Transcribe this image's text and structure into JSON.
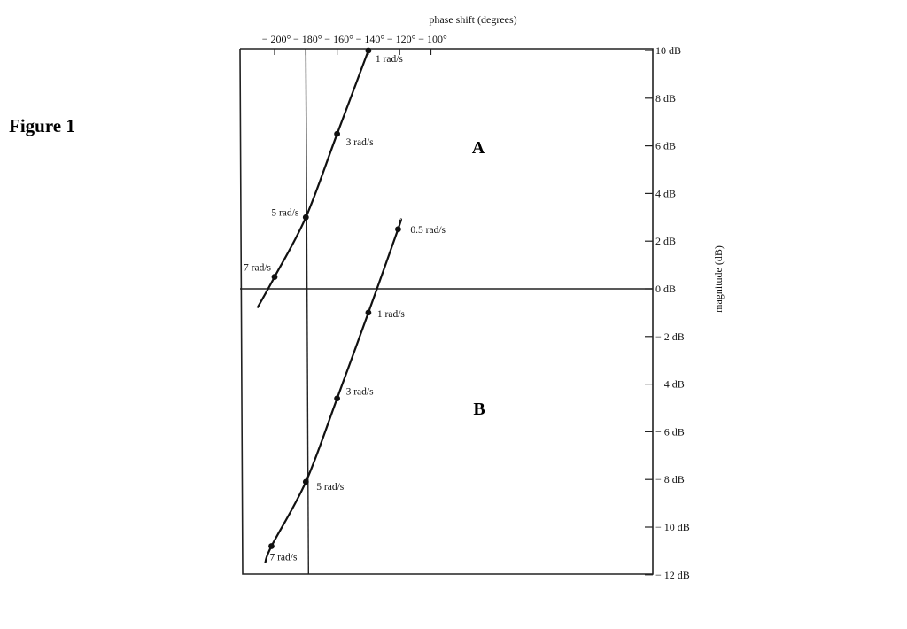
{
  "figure_label": "Figure 1",
  "chart_data": {
    "type": "line",
    "title": "",
    "xlabel": "phase shift (degrees)",
    "ylabel": "magnitude (dB)",
    "xlim": [
      -215,
      -90
    ],
    "ylim": [
      -12.3,
      10.1
    ],
    "x_ticks": [
      -200,
      -180,
      -160,
      -140,
      -120,
      -100
    ],
    "x_tick_labels": [
      "− 200°",
      "− 180°",
      "− 160°",
      "− 140°",
      "− 120°",
      "− 100°"
    ],
    "y_ticks": [
      10,
      8,
      6,
      4,
      2,
      0,
      -2,
      -4,
      -6,
      -8,
      -10,
      -12
    ],
    "y_tick_labels": [
      "10 dB",
      "8 dB",
      "6 dB",
      "4 dB",
      "2 dB",
      "0 dB",
      "− 2 dB",
      "− 4 dB",
      "− 6 dB",
      "− 8 dB",
      "− 10 dB",
      "− 12 dB"
    ],
    "reference_lines": {
      "x": -180,
      "y": 0
    },
    "grid": false,
    "series": [
      {
        "name": "A",
        "curve": [
          [
            -211,
            -0.8
          ],
          [
            -200,
            0.5
          ],
          [
            -180,
            3.0
          ],
          [
            -160,
            6.5
          ],
          [
            -140,
            10.0
          ]
        ],
        "points": [
          {
            "x": -140,
            "y": 10.0,
            "label": "1 rad/s"
          },
          {
            "x": -160,
            "y": 6.5,
            "label": "3 rad/s"
          },
          {
            "x": -180,
            "y": 3.0,
            "label": "5 rad/s"
          },
          {
            "x": -200,
            "y": 0.5,
            "label": "7 rad/s"
          }
        ]
      },
      {
        "name": "B",
        "curve": [
          [
            -206,
            -11.5
          ],
          [
            -202,
            -10.8
          ],
          [
            -180,
            -8.1
          ],
          [
            -160,
            -4.6
          ],
          [
            -140,
            -1.0
          ],
          [
            -121,
            2.5
          ],
          [
            -119.5,
            2.9
          ]
        ],
        "points": [
          {
            "x": -121,
            "y": 2.5,
            "label": "0.5 rad/s"
          },
          {
            "x": -140,
            "y": -1.0,
            "label": "1 rad/s"
          },
          {
            "x": -160,
            "y": -4.6,
            "label": "3 rad/s"
          },
          {
            "x": -180,
            "y": -8.1,
            "label": "5 rad/s"
          },
          {
            "x": -202,
            "y": -10.8,
            "label": "7 rad/s"
          }
        ]
      }
    ]
  }
}
